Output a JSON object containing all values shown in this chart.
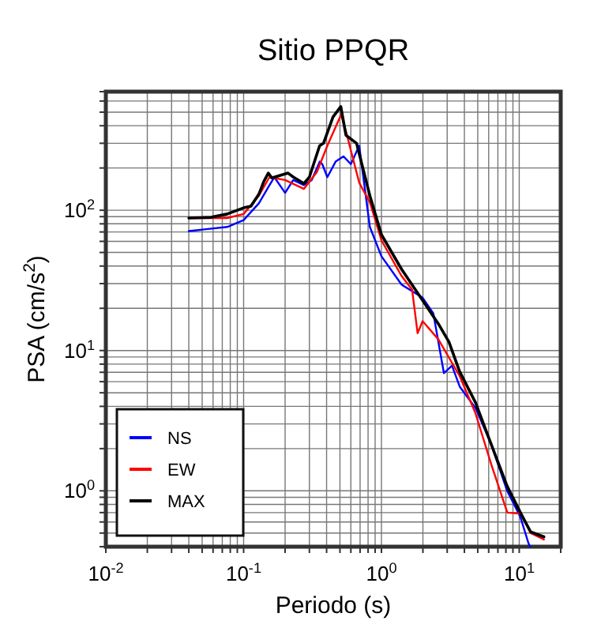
{
  "chart_data": {
    "type": "line",
    "title": "Sitio PPQR",
    "xlabel": "Periodo (s)",
    "ylabel": "PSA (cm/s$^{2}$)",
    "log": "xy",
    "grid": true,
    "legend": "bottom left",
    "line_style": "solid",
    "xlim": [
      0.01,
      20
    ],
    "ylim": [
      0.4,
      700
    ],
    "xticks": [
      {
        "value": 0.01,
        "label": "10$^{-2}$"
      },
      {
        "value": 0.02,
        "label": null
      },
      {
        "value": 0.03,
        "label": null
      },
      {
        "value": 0.04,
        "label": null
      },
      {
        "value": 0.05,
        "label": null
      },
      {
        "value": 0.06,
        "label": null
      },
      {
        "value": 0.07,
        "label": null
      },
      {
        "value": 0.08,
        "label": null
      },
      {
        "value": 0.09,
        "label": null
      },
      {
        "value": 0.1,
        "label": "10$^{-1}$"
      },
      {
        "value": 0.2,
        "label": null
      },
      {
        "value": 0.3,
        "label": null
      },
      {
        "value": 0.4,
        "label": null
      },
      {
        "value": 0.5,
        "label": null
      },
      {
        "value": 0.6,
        "label": null
      },
      {
        "value": 0.7,
        "label": null
      },
      {
        "value": 0.8,
        "label": null
      },
      {
        "value": 0.9,
        "label": null
      },
      {
        "value": 1,
        "label": "10$^{0}$"
      },
      {
        "value": 2,
        "label": null
      },
      {
        "value": 3,
        "label": null
      },
      {
        "value": 4,
        "label": null
      },
      {
        "value": 5,
        "label": null
      },
      {
        "value": 6,
        "label": null
      },
      {
        "value": 7,
        "label": null
      },
      {
        "value": 8,
        "label": null
      },
      {
        "value": 9,
        "label": null
      },
      {
        "value": 10,
        "label": "10$^{1}$"
      },
      {
        "value": 20,
        "label": null
      }
    ],
    "yticks": [
      {
        "value": 0.4,
        "label": null
      },
      {
        "value": 0.5,
        "label": null
      },
      {
        "value": 0.6,
        "label": null
      },
      {
        "value": 0.7,
        "label": null
      },
      {
        "value": 0.8,
        "label": null
      },
      {
        "value": 0.9,
        "label": null
      },
      {
        "value": 1,
        "label": "10$^{0}$"
      },
      {
        "value": 2,
        "label": null
      },
      {
        "value": 3,
        "label": null
      },
      {
        "value": 4,
        "label": null
      },
      {
        "value": 5,
        "label": null
      },
      {
        "value": 6,
        "label": null
      },
      {
        "value": 7,
        "label": null
      },
      {
        "value": 8,
        "label": null
      },
      {
        "value": 9,
        "label": null
      },
      {
        "value": 10,
        "label": "10$^{1}$"
      },
      {
        "value": 20,
        "label": null
      },
      {
        "value": 30,
        "label": null
      },
      {
        "value": 40,
        "label": null
      },
      {
        "value": 50,
        "label": null
      },
      {
        "value": 60,
        "label": null
      },
      {
        "value": 70,
        "label": null
      },
      {
        "value": 80,
        "label": null
      },
      {
        "value": 90,
        "label": null
      },
      {
        "value": 100,
        "label": "10$^{2}$"
      },
      {
        "value": 200,
        "label": null
      },
      {
        "value": 300,
        "label": null
      },
      {
        "value": 400,
        "label": null
      },
      {
        "value": 500,
        "label": null
      },
      {
        "value": 600,
        "label": null
      }
    ],
    "series": [
      {
        "name": "NS",
        "color": "#0000ff",
        "x": [
          0.04,
          0.076,
          0.1,
          0.129,
          0.154,
          0.167,
          0.2,
          0.229,
          0.274,
          0.312,
          0.357,
          0.372,
          0.405,
          0.465,
          0.53,
          0.6,
          0.69,
          0.824,
          1.0,
          1.4,
          1.99,
          2.38,
          2.84,
          3.25,
          3.71,
          4.81,
          6.26,
          8.17,
          10.2,
          11.7,
          12.0
        ],
        "values": [
          71,
          76,
          85,
          112,
          151,
          172,
          133,
          164,
          151,
          164,
          222,
          213,
          172,
          222,
          242,
          213,
          288,
          76,
          47,
          29.5,
          23.8,
          18.4,
          6.9,
          7.8,
          5.5,
          3.9,
          2.15,
          1.0,
          0.65,
          0.42,
          0.4
        ]
      },
      {
        "name": "EW",
        "color": "#ff0000",
        "x": [
          0.04,
          0.076,
          0.1,
          0.129,
          0.154,
          0.2,
          0.24,
          0.274,
          0.34,
          0.405,
          0.51,
          0.556,
          0.69,
          0.824,
          1.0,
          1.4,
          1.67,
          1.83,
          1.99,
          2.59,
          3.69,
          4.8,
          6.3,
          8.2,
          10.2,
          12.1,
          15.1
        ],
        "values": [
          88,
          88,
          94,
          127,
          172,
          164,
          151,
          142,
          187,
          288,
          480,
          357,
          157,
          114,
          61,
          34,
          27.1,
          13.3,
          16.2,
          12,
          6.6,
          3.6,
          1.52,
          0.7,
          0.69,
          0.5,
          0.45
        ]
      },
      {
        "name": "MAX",
        "color": "#000000",
        "x": [
          0.04,
          0.058,
          0.076,
          0.1,
          0.113,
          0.129,
          0.14,
          0.151,
          0.16,
          0.21,
          0.23,
          0.274,
          0.3,
          0.356,
          0.38,
          0.445,
          0.507,
          0.553,
          0.66,
          0.824,
          1.0,
          1.4,
          1.99,
          2.59,
          3.09,
          3.69,
          4.81,
          6.26,
          8.17,
          10.2,
          12.1,
          15.1
        ],
        "values": [
          88,
          89,
          94,
          104,
          107,
          130,
          160,
          184,
          170,
          184,
          172,
          155,
          172,
          288,
          300,
          462,
          548,
          342,
          300,
          127,
          67,
          38,
          22.8,
          15.5,
          11.5,
          7.1,
          4.27,
          2.15,
          1.08,
          0.7,
          0.51,
          0.47
        ]
      }
    ]
  }
}
